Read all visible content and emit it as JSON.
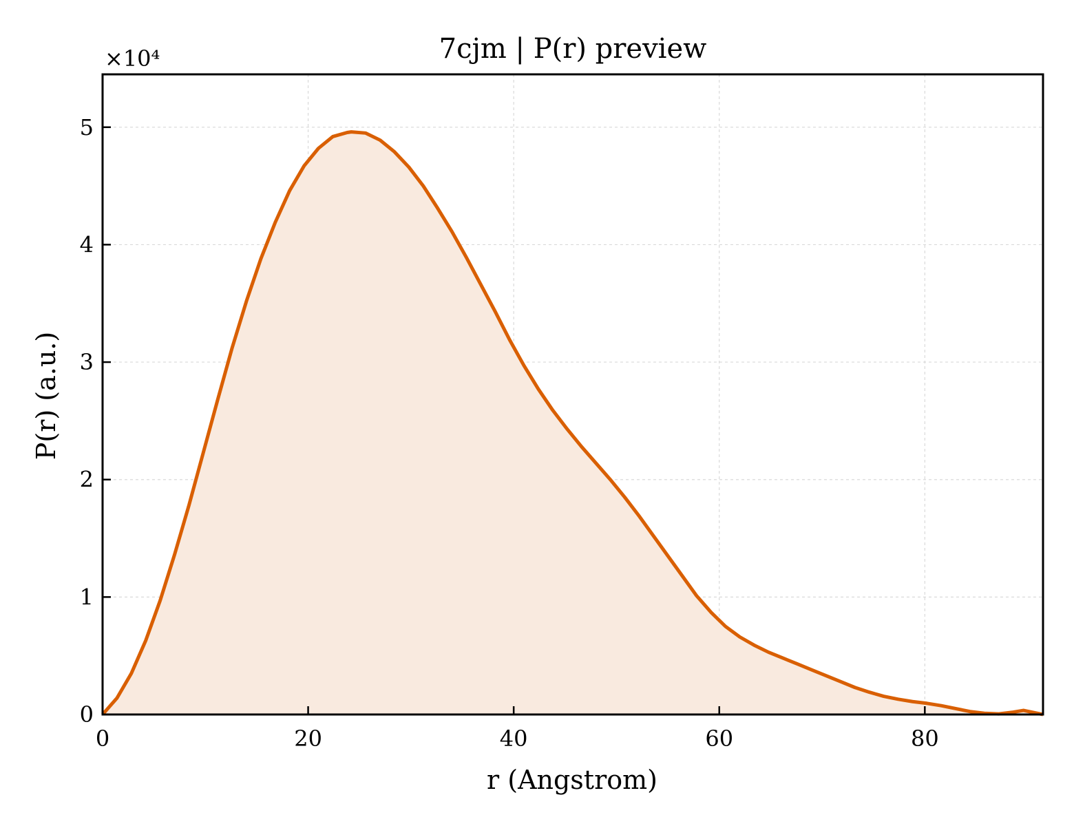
{
  "colors": {
    "line": "#d95f02",
    "fill": "#f9eadf",
    "grid": "#d9d9d9",
    "axes": "#000000"
  },
  "chart_data": {
    "type": "area",
    "title": "7cjm | P(r) preview",
    "xlabel": "r (Angstrom)",
    "ylabel": "P(r) (a.u.)",
    "y_multiplier_label": "×10⁴",
    "y_scale": 10000,
    "xlim": [
      0,
      91.5
    ],
    "ylim": [
      0,
      54500
    ],
    "xticks": [
      0,
      20,
      40,
      60,
      80
    ],
    "yticks": [
      0,
      10000,
      20000,
      30000,
      40000,
      50000
    ],
    "ytick_labels": [
      "0",
      "1",
      "2",
      "3",
      "4",
      "5"
    ],
    "grid": true,
    "x": [
      0,
      1.4,
      2.8,
      4.2,
      5.6,
      7.0,
      8.4,
      9.8,
      11.2,
      12.6,
      14.0,
      15.4,
      16.8,
      18.2,
      19.6,
      21.0,
      22.4,
      23.8,
      24.2,
      25.6,
      27.0,
      28.4,
      29.8,
      31.2,
      32.6,
      34.0,
      35.4,
      36.8,
      38.2,
      39.6,
      41.0,
      42.4,
      43.8,
      45.2,
      46.6,
      48.0,
      49.4,
      50.8,
      52.2,
      53.6,
      55.0,
      56.4,
      57.8,
      59.2,
      60.6,
      62.0,
      63.4,
      64.8,
      66.2,
      67.6,
      69.0,
      70.4,
      71.8,
      73.2,
      74.6,
      76.0,
      77.4,
      78.8,
      80.2,
      81.6,
      83.0,
      84.4,
      85.8,
      87.2,
      88.6,
      89.6,
      91.5
    ],
    "series": [
      {
        "values": [
          0,
          1400,
          3500,
          6300,
          9700,
          13600,
          17800,
          22300,
          26800,
          31200,
          35200,
          38800,
          41900,
          44600,
          46700,
          48200,
          49200,
          49550,
          49600,
          49500,
          48900,
          47900,
          46600,
          45000,
          43100,
          41100,
          38900,
          36600,
          34300,
          31900,
          29700,
          27700,
          25900,
          24300,
          22800,
          21400,
          20000,
          18500,
          16900,
          15200,
          13500,
          11800,
          10100,
          8700,
          7500,
          6600,
          5900,
          5300,
          4800,
          4300,
          3800,
          3300,
          2800,
          2300,
          1900,
          1550,
          1300,
          1100,
          950,
          750,
          500,
          250,
          100,
          50,
          200,
          350,
          0
        ]
      }
    ]
  }
}
